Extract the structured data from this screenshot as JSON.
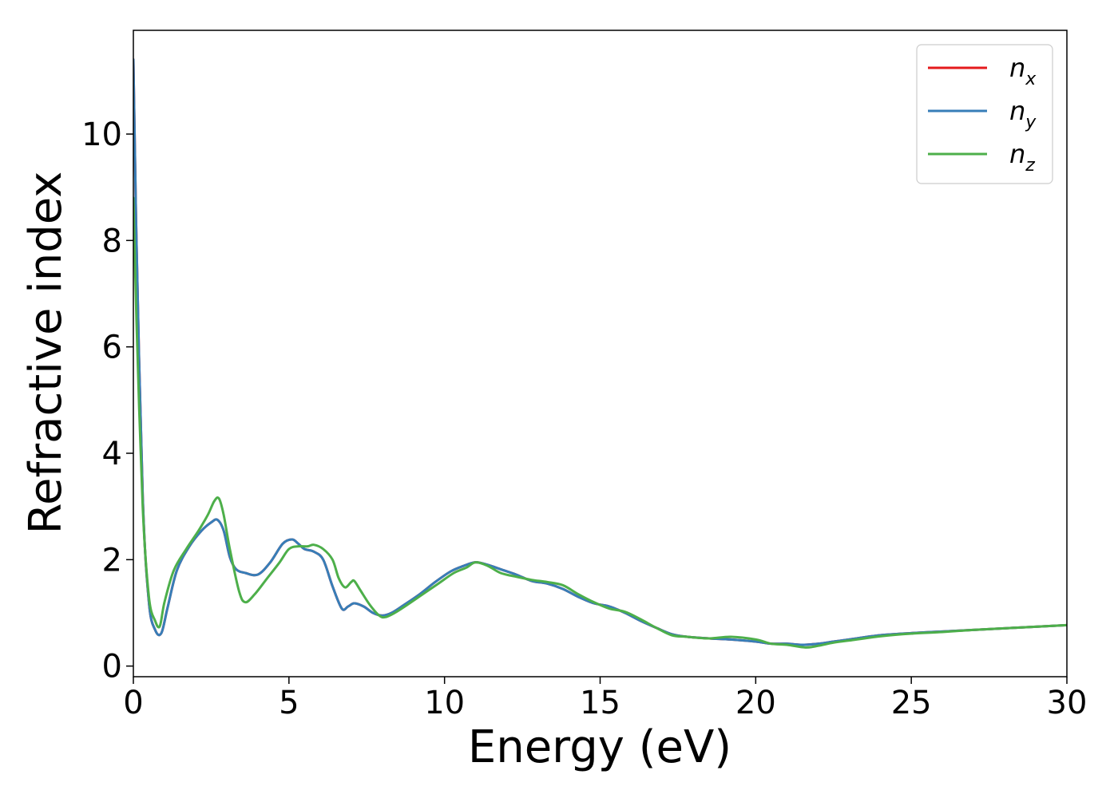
{
  "chart_data": {
    "type": "line",
    "xlabel": "Energy (eV)",
    "ylabel": "Refractive index",
    "xlim": [
      0,
      30
    ],
    "ylim": [
      -0.2,
      11.95
    ],
    "xticks": [
      0,
      5,
      10,
      15,
      20,
      25,
      30
    ],
    "yticks": [
      0,
      2,
      4,
      6,
      8,
      10
    ],
    "grid": false,
    "legend_position": "top-right",
    "series": [
      {
        "name": "n_x",
        "label": {
          "base": "n",
          "sub": "x"
        },
        "color": "#e41a1c",
        "x": [
          0,
          0.1,
          0.3,
          0.5,
          0.7,
          0.9,
          1.1,
          1.4,
          1.8,
          2.2,
          2.5,
          2.7,
          2.9,
          3.1,
          3.3,
          3.6,
          4.0,
          4.4,
          4.8,
          5.1,
          5.3,
          5.5,
          5.8,
          6.1,
          6.4,
          6.7,
          6.9,
          7.1,
          7.4,
          7.7,
          8.0,
          8.3,
          8.7,
          9.2,
          9.7,
          10.2,
          10.6,
          11.0,
          11.4,
          11.8,
          12.3,
          12.8,
          13.3,
          13.8,
          14.3,
          14.8,
          15.3,
          15.8,
          16.3,
          16.8,
          17.3,
          17.8,
          18.5,
          19.2,
          20.0,
          20.5,
          21.0,
          21.5,
          22.0,
          22.5,
          23.0,
          24.0,
          25.0,
          26.0,
          27.0,
          28.0,
          29.0,
          30.0
        ],
        "y": [
          11.4,
          8.0,
          3.2,
          1.2,
          0.68,
          0.62,
          1.1,
          1.8,
          2.25,
          2.55,
          2.7,
          2.75,
          2.55,
          2.05,
          1.82,
          1.75,
          1.72,
          1.95,
          2.3,
          2.38,
          2.3,
          2.2,
          2.15,
          2.0,
          1.5,
          1.08,
          1.12,
          1.18,
          1.12,
          1.0,
          0.95,
          1.0,
          1.15,
          1.35,
          1.58,
          1.78,
          1.88,
          1.95,
          1.9,
          1.82,
          1.72,
          1.6,
          1.55,
          1.45,
          1.3,
          1.18,
          1.12,
          1.0,
          0.85,
          0.72,
          0.6,
          0.55,
          0.52,
          0.5,
          0.46,
          0.42,
          0.42,
          0.4,
          0.42,
          0.46,
          0.5,
          0.58,
          0.62,
          0.65,
          0.68,
          0.71,
          0.74,
          0.77
        ]
      },
      {
        "name": "n_y",
        "label": {
          "base": "n",
          "sub": "y"
        },
        "color": "#377eb8",
        "x": [
          0,
          0.1,
          0.3,
          0.5,
          0.7,
          0.9,
          1.1,
          1.4,
          1.8,
          2.2,
          2.5,
          2.7,
          2.9,
          3.1,
          3.3,
          3.6,
          4.0,
          4.4,
          4.8,
          5.1,
          5.3,
          5.5,
          5.8,
          6.1,
          6.4,
          6.7,
          6.9,
          7.1,
          7.4,
          7.7,
          8.0,
          8.3,
          8.7,
          9.2,
          9.7,
          10.2,
          10.6,
          11.0,
          11.4,
          11.8,
          12.3,
          12.8,
          13.3,
          13.8,
          14.3,
          14.8,
          15.3,
          15.8,
          16.3,
          16.8,
          17.3,
          17.8,
          18.5,
          19.2,
          20.0,
          20.5,
          21.0,
          21.5,
          22.0,
          22.5,
          23.0,
          24.0,
          25.0,
          26.0,
          27.0,
          28.0,
          29.0,
          30.0
        ],
        "y": [
          11.4,
          8.0,
          3.2,
          1.2,
          0.68,
          0.62,
          1.1,
          1.8,
          2.25,
          2.55,
          2.7,
          2.75,
          2.55,
          2.05,
          1.82,
          1.75,
          1.72,
          1.95,
          2.3,
          2.38,
          2.3,
          2.2,
          2.15,
          2.0,
          1.5,
          1.08,
          1.12,
          1.18,
          1.12,
          1.0,
          0.95,
          1.0,
          1.15,
          1.35,
          1.58,
          1.78,
          1.88,
          1.95,
          1.9,
          1.82,
          1.72,
          1.6,
          1.55,
          1.45,
          1.3,
          1.18,
          1.12,
          1.0,
          0.85,
          0.72,
          0.6,
          0.55,
          0.52,
          0.5,
          0.46,
          0.42,
          0.42,
          0.4,
          0.42,
          0.46,
          0.5,
          0.58,
          0.62,
          0.65,
          0.68,
          0.71,
          0.74,
          0.77
        ]
      },
      {
        "name": "n_z",
        "label": {
          "base": "n",
          "sub": "z"
        },
        "color": "#4daf4a",
        "x": [
          0,
          0.1,
          0.3,
          0.5,
          0.7,
          0.85,
          1.0,
          1.3,
          1.7,
          2.1,
          2.4,
          2.6,
          2.75,
          2.9,
          3.1,
          3.4,
          3.6,
          3.9,
          4.3,
          4.7,
          5.0,
          5.3,
          5.6,
          5.8,
          6.1,
          6.4,
          6.6,
          6.8,
          7.0,
          7.1,
          7.3,
          7.6,
          7.9,
          8.1,
          8.4,
          8.8,
          9.3,
          9.8,
          10.3,
          10.7,
          11.0,
          11.4,
          11.8,
          12.3,
          12.8,
          13.3,
          13.8,
          14.3,
          14.8,
          15.3,
          15.8,
          16.3,
          16.8,
          17.3,
          17.8,
          18.5,
          19.2,
          20.0,
          20.5,
          21.0,
          21.6,
          22.0,
          22.5,
          23.0,
          24.0,
          25.0,
          26.0,
          27.0,
          28.0,
          29.0,
          30.0
        ],
        "y": [
          8.8,
          6.5,
          3.0,
          1.3,
          0.85,
          0.75,
          1.2,
          1.8,
          2.2,
          2.55,
          2.85,
          3.1,
          3.15,
          2.85,
          2.2,
          1.4,
          1.2,
          1.35,
          1.65,
          1.95,
          2.2,
          2.25,
          2.25,
          2.28,
          2.2,
          2.0,
          1.65,
          1.48,
          1.58,
          1.6,
          1.42,
          1.15,
          0.95,
          0.92,
          1.0,
          1.15,
          1.35,
          1.55,
          1.75,
          1.85,
          1.95,
          1.88,
          1.75,
          1.68,
          1.62,
          1.58,
          1.52,
          1.35,
          1.2,
          1.08,
          1.02,
          0.88,
          0.72,
          0.58,
          0.55,
          0.52,
          0.55,
          0.5,
          0.42,
          0.4,
          0.35,
          0.38,
          0.44,
          0.48,
          0.56,
          0.61,
          0.64,
          0.68,
          0.71,
          0.74,
          0.77
        ]
      }
    ]
  }
}
